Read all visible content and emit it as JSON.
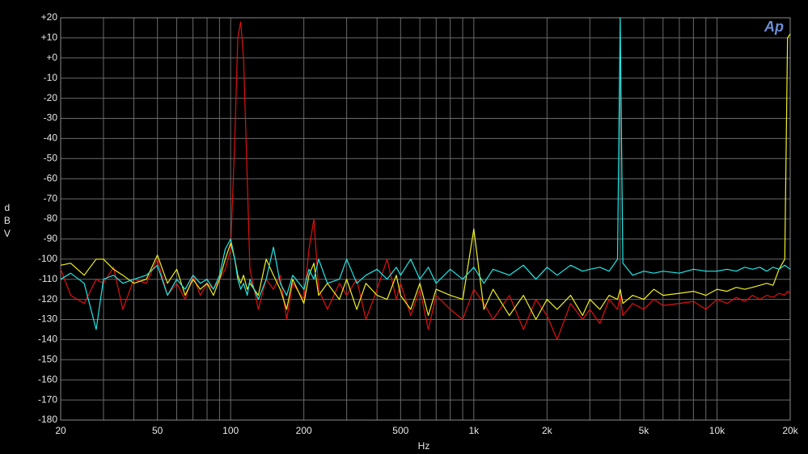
{
  "chart_data": {
    "type": "line",
    "logo": "Ap",
    "x_label": "Hz",
    "y_label": "dBV",
    "log_x": true,
    "grid": true,
    "background": "#000000",
    "xlim": [
      20,
      20000
    ],
    "ylim": [
      -180,
      20
    ],
    "xticks": [
      20,
      50,
      100,
      200,
      500,
      {
        "value": 1000,
        "label": "1k"
      },
      {
        "value": 2000,
        "label": "2k"
      },
      {
        "value": 5000,
        "label": "5k"
      },
      {
        "value": 10000,
        "label": "10k"
      },
      {
        "value": 20000,
        "label": "20k"
      }
    ],
    "xgrid": [
      30,
      40,
      60,
      70,
      80,
      90,
      300,
      400,
      600,
      700,
      800,
      900,
      3000,
      4000,
      6000,
      7000,
      8000,
      9000
    ],
    "yticks": [
      {
        "value": 20,
        "label": "+20"
      },
      {
        "value": 10,
        "label": "+10"
      },
      {
        "value": 0,
        "label": "+0"
      },
      -10,
      -20,
      -30,
      -40,
      -50,
      -60,
      -70,
      -80,
      -90,
      -100,
      -110,
      -120,
      -130,
      -140,
      -150,
      -160,
      -170,
      -180
    ],
    "x": [
      20,
      22,
      25,
      28,
      30,
      33,
      36,
      40,
      45,
      50,
      55,
      60,
      65,
      70,
      75,
      80,
      85,
      90,
      95,
      100,
      104,
      107,
      110,
      113,
      117,
      120,
      130,
      140,
      150,
      160,
      170,
      180,
      200,
      210,
      220,
      230,
      250,
      280,
      300,
      330,
      360,
      400,
      440,
      480,
      500,
      550,
      600,
      650,
      700,
      800,
      900,
      1000,
      1100,
      1200,
      1400,
      1600,
      1800,
      2000,
      2200,
      2500,
      2800,
      3000,
      3300,
      3600,
      3900,
      4000,
      4100,
      4500,
      5000,
      5500,
      6000,
      7000,
      8000,
      9000,
      10000,
      11000,
      12000,
      13000,
      14000,
      15000,
      16000,
      17000,
      18000,
      19000,
      19500,
      20000
    ],
    "series": [
      {
        "color": "#e01010",
        "values": [
          -105,
          -118,
          -122,
          -110,
          -112,
          -104,
          -125,
          -110,
          -112,
          -100,
          -118,
          -112,
          -120,
          -108,
          -118,
          -112,
          -115,
          -110,
          -105,
          -95,
          -40,
          10,
          18,
          0,
          -60,
          -105,
          -125,
          -110,
          -115,
          -108,
          -130,
          -112,
          -120,
          -95,
          -80,
          -115,
          -125,
          -112,
          -118,
          -110,
          -130,
          -115,
          -100,
          -120,
          -112,
          -128,
          -115,
          -135,
          -118,
          -125,
          -130,
          -115,
          -122,
          -130,
          -118,
          -135,
          -120,
          -128,
          -140,
          -122,
          -130,
          -125,
          -132,
          -120,
          -125,
          -118,
          -128,
          -122,
          -125,
          -120,
          -123,
          -122,
          -121,
          -125,
          -120,
          -122,
          -119,
          -121,
          -118,
          -120,
          -118,
          -119,
          -117,
          -118,
          -116,
          -117
        ]
      },
      {
        "color": "#f0f020",
        "values": [
          -103,
          -102,
          -108,
          -100,
          -100,
          -105,
          -108,
          -112,
          -110,
          -98,
          -112,
          -105,
          -118,
          -110,
          -115,
          -112,
          -118,
          -110,
          -100,
          -92,
          -100,
          -108,
          -112,
          -108,
          -115,
          -112,
          -118,
          -100,
          -108,
          -115,
          -125,
          -110,
          -122,
          -108,
          -102,
          -118,
          -112,
          -120,
          -110,
          -125,
          -112,
          -118,
          -120,
          -108,
          -118,
          -125,
          -112,
          -128,
          -115,
          -118,
          -120,
          -85,
          -125,
          -115,
          -128,
          -118,
          -130,
          -120,
          -125,
          -118,
          -128,
          -120,
          -125,
          -118,
          -120,
          -115,
          -122,
          -118,
          -120,
          -115,
          -118,
          -117,
          -116,
          -118,
          -115,
          -116,
          -114,
          -115,
          -114,
          -113,
          -112,
          -113,
          -105,
          -100,
          10,
          12
        ]
      },
      {
        "color": "#20e8e8",
        "values": [
          -110,
          -107,
          -112,
          -135,
          -110,
          -108,
          -112,
          -110,
          -108,
          -103,
          -118,
          -110,
          -115,
          -108,
          -112,
          -110,
          -115,
          -108,
          -95,
          -90,
          -100,
          -110,
          -115,
          -112,
          -118,
          -110,
          -120,
          -110,
          -94,
          -112,
          -118,
          -108,
          -115,
          -105,
          -110,
          -100,
          -112,
          -110,
          -100,
          -112,
          -108,
          -105,
          -110,
          -104,
          -108,
          -100,
          -110,
          -104,
          -112,
          -105,
          -110,
          -104,
          -112,
          -105,
          -108,
          -103,
          -110,
          -104,
          -108,
          -103,
          -106,
          -105,
          -104,
          -106,
          -100,
          20,
          -102,
          -108,
          -106,
          -107,
          -106,
          -107,
          -105,
          -106,
          -106,
          -105,
          -106,
          -104,
          -105,
          -104,
          -106,
          -104,
          -105,
          -103,
          -104,
          -105
        ]
      }
    ]
  }
}
